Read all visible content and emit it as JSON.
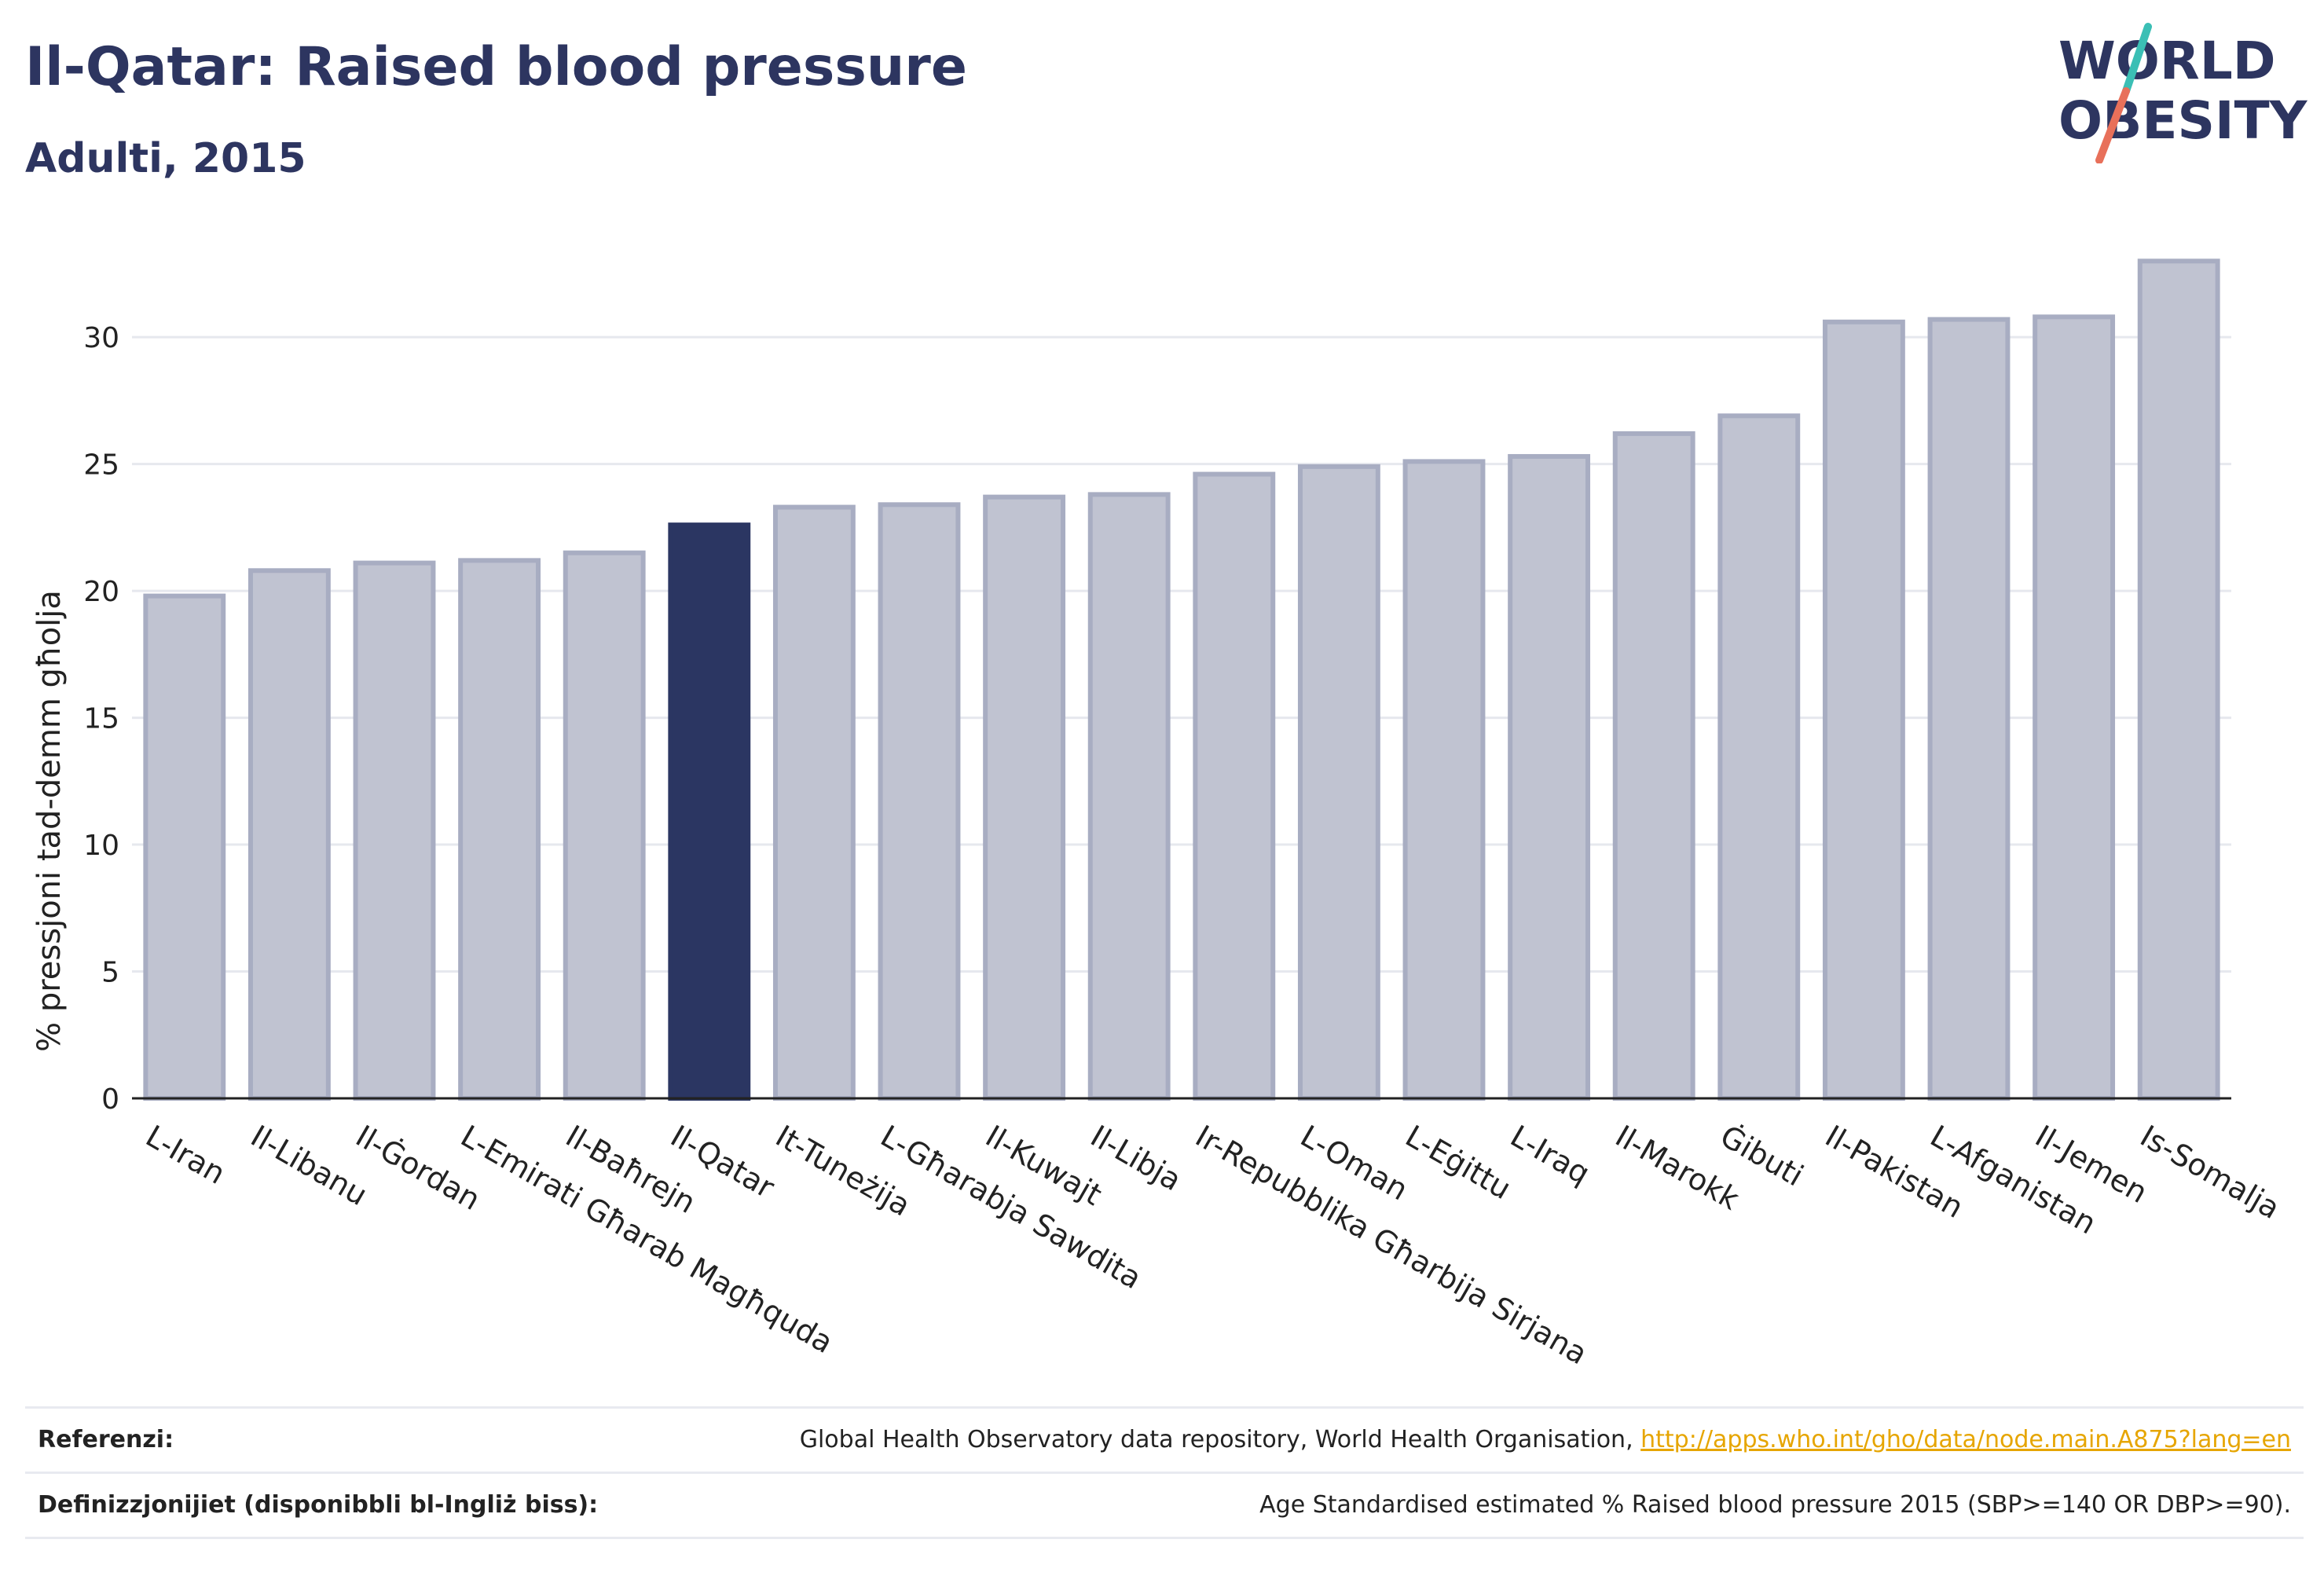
{
  "header": {
    "title": "Il-Qatar: Raised blood pressure",
    "subtitle": "Adulti, 2015"
  },
  "logo": {
    "line1": "WORLD",
    "line2": "OBESITY",
    "colors": {
      "text": "#2d3560",
      "slash_top": "#3bbfb5",
      "slash_bottom": "#e8705a"
    }
  },
  "colors": {
    "bar_default": "#c0c3d1",
    "bar_default_stroke": "#a8adc2",
    "bar_highlight": "#2b3662",
    "axis": "#222222",
    "grid": "#e6e8ee"
  },
  "chart_data": {
    "type": "bar",
    "ylabel": "% pressjoni tad-demm għolja",
    "ylim": [
      0,
      34
    ],
    "yticks": [
      0,
      5,
      10,
      15,
      20,
      25,
      30
    ],
    "grid": true,
    "highlight": "Il-Qatar",
    "categories": [
      "L-Iran",
      "Il-Libanu",
      "Il-Ġordan",
      "L-Emirati Għarab Magħquda",
      "Il-Baħrejn",
      "Il-Qatar",
      "It-Tuneżija",
      "L-Għarabja Sawdita",
      "Il-Kuwajt",
      "Il-Libja",
      "Ir-Repubblika Għarbija Sirjana",
      "L-Oman",
      "L-Eġittu",
      "L-Iraq",
      "Il-Marokk",
      "Ġibuti",
      "Il-Pakistan",
      "L-Afganistan",
      "Il-Jemen",
      "Is-Somalja"
    ],
    "values": [
      19.8,
      20.8,
      21.1,
      21.2,
      21.5,
      22.6,
      23.3,
      23.4,
      23.7,
      23.8,
      24.6,
      24.9,
      25.1,
      25.3,
      26.2,
      26.9,
      30.6,
      30.7,
      30.8,
      33.0
    ]
  },
  "footer": {
    "reference_label": "Referenzi:",
    "reference_text": "Global Health Observatory data repository, World Health Organisation, ",
    "reference_link": "http://apps.who.int/gho/data/node.main.A875?lang=en",
    "definition_label": "Definizzjonijiet (disponibbli bl-Ingliż biss):",
    "definition_text": "Age Standardised estimated % Raised blood pressure 2015 (SBP>=140 OR DBP>=90)."
  }
}
